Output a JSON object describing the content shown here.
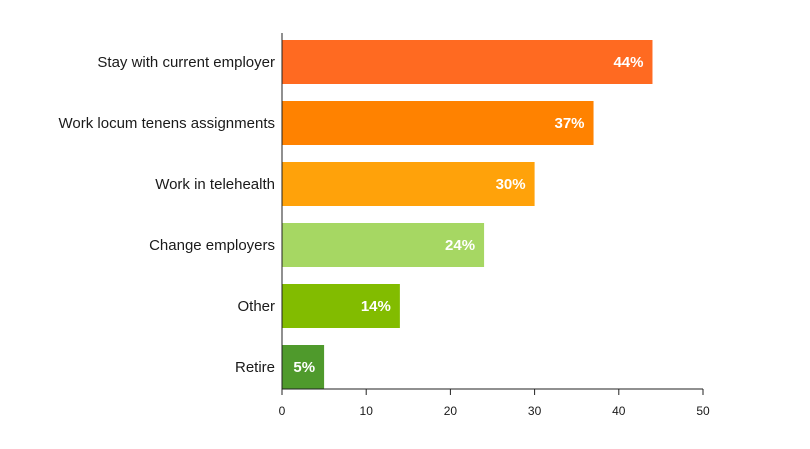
{
  "chart_data": {
    "type": "bar",
    "orientation": "horizontal",
    "categories": [
      "Stay with current employer",
      "Work locum tenens assignments",
      "Work in telehealth",
      "Change employers",
      "Other",
      "Retire"
    ],
    "values": [
      44,
      37,
      30,
      24,
      14,
      5
    ],
    "data_labels": [
      "44%",
      "37%",
      "30%",
      "24%",
      "14%",
      "5%"
    ],
    "bar_colors": [
      "#ff6a21",
      "#ff8200",
      "#ffa20a",
      "#a6d763",
      "#82bc00",
      "#4f9a2c"
    ],
    "xlim": [
      0,
      50
    ],
    "xticks": [
      0,
      10,
      20,
      30,
      40,
      50
    ],
    "xtick_labels": [
      "0",
      "10",
      "20",
      "30",
      "40",
      "50"
    ],
    "title": "",
    "xlabel": "",
    "ylabel": "",
    "grid": false,
    "legend": "none"
  }
}
